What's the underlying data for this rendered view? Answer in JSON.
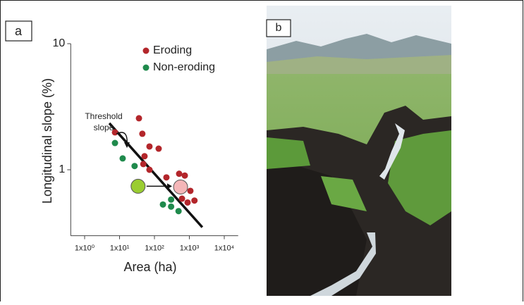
{
  "panels": [
    "a",
    "b"
  ],
  "chart_data": {
    "type": "scatter",
    "xlabel": "Area (ha)",
    "ylabel": "Longitudinal slope (%)",
    "xscale": "log",
    "yscale": "log",
    "xlim": [
      0.4,
      25000
    ],
    "ylim": [
      0.3,
      10
    ],
    "xticks": [
      {
        "value": 1,
        "label": "1x10⁰"
      },
      {
        "value": 10,
        "label": "1x10¹"
      },
      {
        "value": 100,
        "label": "1x10²"
      },
      {
        "value": 1000,
        "label": "1x10³"
      },
      {
        "value": 10000,
        "label": "1x10⁴"
      }
    ],
    "yticks": [
      1,
      10
    ],
    "legend": "top-right",
    "series": [
      {
        "name": "Eroding",
        "color": "#b3262b",
        "x": [
          7.4,
          36,
          45,
          72,
          132,
          52,
          48,
          72,
          220,
          510,
          740,
          1070,
          615,
          890,
          1400
        ],
        "y": [
          1.98,
          2.56,
          1.93,
          1.53,
          1.47,
          1.28,
          1.11,
          1.0,
          0.87,
          0.93,
          0.9,
          0.68,
          0.59,
          0.55,
          0.57
        ]
      },
      {
        "name": "Non-eroding",
        "color": "#1f8a4c",
        "x": [
          7.4,
          12.3,
          27,
          175,
          300,
          300,
          490
        ],
        "y": [
          1.63,
          1.23,
          1.07,
          0.53,
          0.58,
          0.51,
          0.47
        ]
      }
    ],
    "highlight_points": [
      {
        "x": 34,
        "y": 0.74,
        "color": "#9acd32"
      },
      {
        "x": 560,
        "y": 0.73,
        "color": "#f4b6b8"
      }
    ],
    "threshold_line": {
      "x": [
        5.1,
        2350
      ],
      "y": [
        2.34,
        0.35
      ]
    },
    "annotations": [
      "Threshold",
      "slope"
    ]
  }
}
